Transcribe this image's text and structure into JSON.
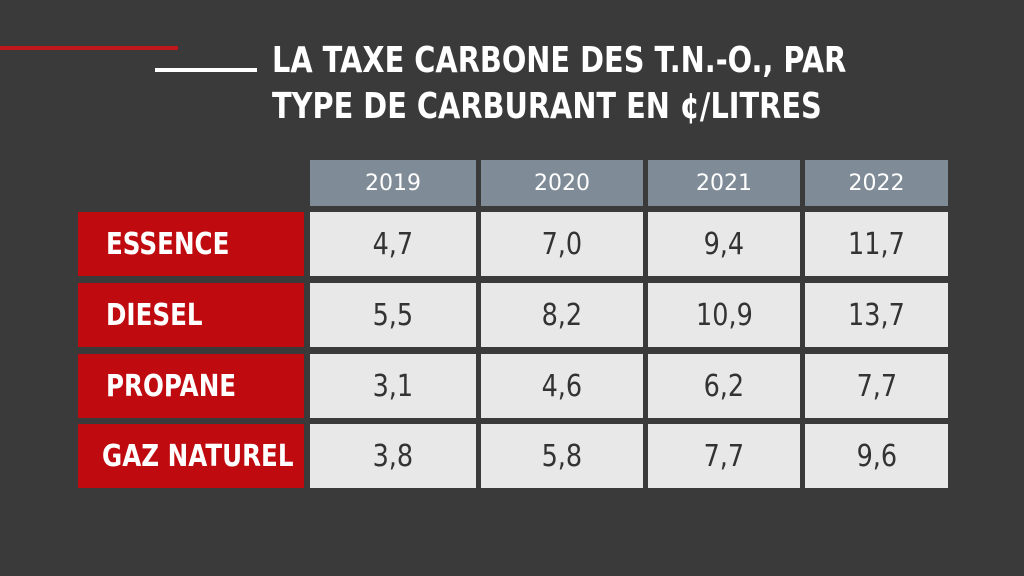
{
  "accents": {
    "line_red": "#c0151b",
    "line_white": "#ffffff"
  },
  "title": {
    "line1": "LA TAXE CARBONE DES T.N.-O., PAR",
    "line2": "TYPE DE CARBURANT EN ¢/LITRES"
  },
  "colors": {
    "background": "#3a3a3a",
    "header": "#7f8c97",
    "row_label": "#bf0b10",
    "cell": "#e8e8e8"
  },
  "chart_data": {
    "type": "table",
    "title": "LA TAXE CARBONE DES T.N.-O., PAR TYPE DE CARBURANT EN ¢/LITRES",
    "columns": [
      "2019",
      "2020",
      "2021",
      "2022"
    ],
    "rows": [
      {
        "label": "ESSENCE",
        "values": [
          "4,7",
          "7,0",
          "9,4",
          "11,7"
        ]
      },
      {
        "label": "DIESEL",
        "values": [
          "5,5",
          "8,2",
          "10,9",
          "13,7"
        ]
      },
      {
        "label": "PROPANE",
        "values": [
          "3,1",
          "4,6",
          "6,2",
          "7,7"
        ]
      },
      {
        "label": "GAZ NATUREL",
        "values": [
          "3,8",
          "5,8",
          "7,7",
          "9,6"
        ]
      }
    ]
  }
}
